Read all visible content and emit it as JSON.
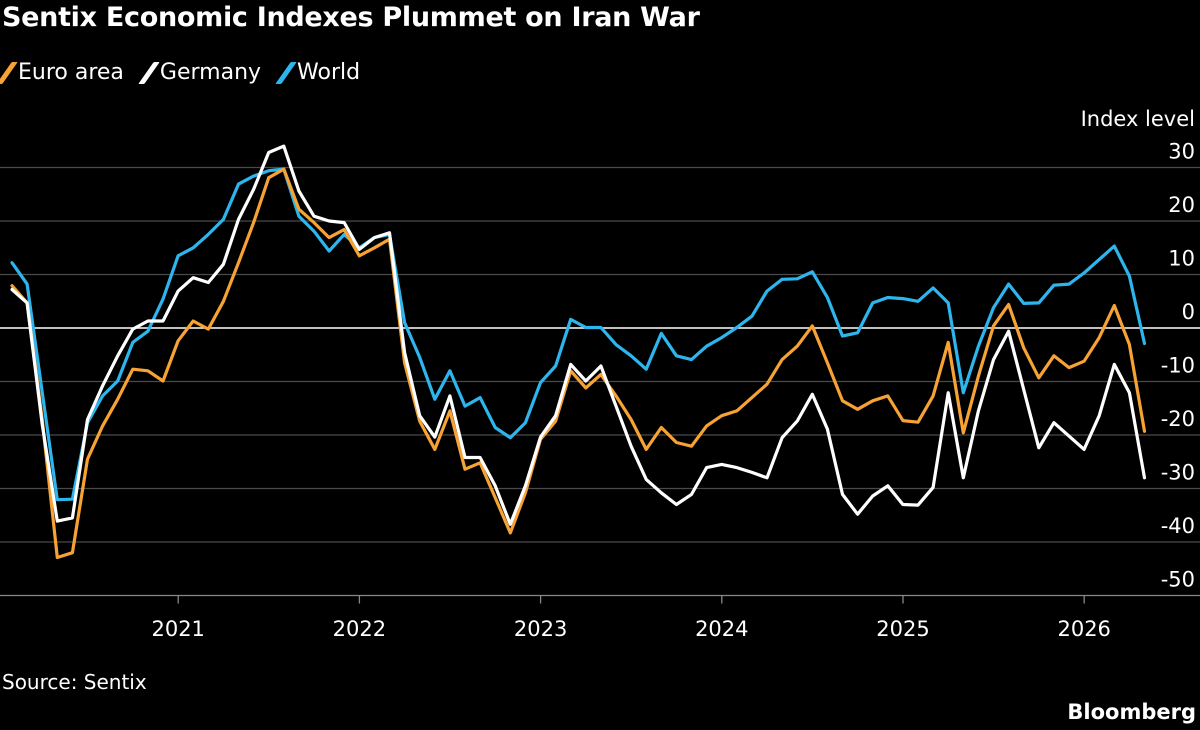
{
  "title": "Sentix Economic Indexes Plummet on Iran War",
  "source": "Source: Sentix",
  "brand": "Bloomberg",
  "chart_data": {
    "type": "line",
    "ylabel": "Index level",
    "ylim": [
      -50,
      30
    ],
    "y_ticks": [
      30,
      20,
      10,
      0,
      -10,
      -20,
      -30,
      -40,
      -50
    ],
    "x_ticks": [
      "2021",
      "2022",
      "2023",
      "2024",
      "2025",
      "2026"
    ],
    "grid": true,
    "legend": "top-left",
    "x": [
      "2020-01",
      "2020-02",
      "2020-03",
      "2020-04",
      "2020-05",
      "2020-06",
      "2020-07",
      "2020-08",
      "2020-09",
      "2020-10",
      "2020-11",
      "2020-12",
      "2021-01",
      "2021-02",
      "2021-03",
      "2021-04",
      "2021-05",
      "2021-06",
      "2021-07",
      "2021-08",
      "2021-09",
      "2021-10",
      "2021-11",
      "2021-12",
      "2022-01",
      "2022-02",
      "2022-03",
      "2022-04",
      "2022-05",
      "2022-06",
      "2022-07",
      "2022-08",
      "2022-09",
      "2022-10",
      "2022-11",
      "2022-12",
      "2023-01",
      "2023-02",
      "2023-03",
      "2023-04",
      "2023-05",
      "2023-06",
      "2023-07",
      "2023-08",
      "2023-09",
      "2023-10",
      "2023-11",
      "2023-12",
      "2024-01",
      "2024-02",
      "2024-03",
      "2024-04",
      "2024-05",
      "2024-06",
      "2024-07",
      "2024-08",
      "2024-09",
      "2024-10",
      "2024-11",
      "2024-12",
      "2025-01",
      "2025-02",
      "2025-03",
      "2025-04",
      "2025-05",
      "2025-06",
      "2025-07",
      "2025-08",
      "2025-09",
      "2025-10",
      "2025-11",
      "2025-12",
      "2026-01",
      "2026-02",
      "2026-03",
      "2026-04"
    ],
    "series": [
      {
        "name": "Euro area",
        "color": "#f7a234",
        "values": [
          7.9,
          4.7,
          -17.1,
          -42.9,
          -42.0,
          -24.5,
          -18.3,
          -13.3,
          -7.7,
          -8.0,
          -9.9,
          -2.4,
          1.3,
          -0.2,
          5.0,
          12.2,
          19.7,
          28.1,
          29.7,
          22.2,
          19.7,
          16.9,
          18.4,
          13.5,
          15.0,
          16.6,
          -6.5,
          -17.4,
          -22.7,
          -15.5,
          -26.4,
          -25.2,
          -31.7,
          -38.3,
          -30.8,
          -20.8,
          -17.4,
          -8.0,
          -11.2,
          -8.7,
          -12.7,
          -17.1,
          -22.7,
          -18.6,
          -21.4,
          -22.1,
          -18.3,
          -16.4,
          -15.5,
          -13.0,
          -10.5,
          -5.9,
          -3.4,
          0.4,
          -6.5,
          -13.6,
          -15.2,
          -13.6,
          -12.7,
          -17.3,
          -17.6,
          -12.7,
          -2.7,
          -19.6,
          -9.0,
          0.4,
          4.4,
          -3.7,
          -9.3,
          -5.2,
          -7.4,
          -6.2,
          -1.8,
          4.2,
          -3.1,
          -19.3
        ]
      },
      {
        "name": "Germany",
        "color": "#ffffff",
        "values": [
          7.2,
          4.7,
          -18.0,
          -36.1,
          -35.5,
          -17.1,
          -10.8,
          -5.2,
          -0.2,
          1.3,
          1.3,
          6.9,
          9.4,
          8.5,
          11.9,
          20.3,
          25.9,
          32.8,
          34.0,
          25.6,
          20.9,
          20.0,
          19.7,
          14.7,
          16.9,
          17.8,
          -4.6,
          -16.4,
          -20.4,
          -12.7,
          -24.2,
          -24.2,
          -29.5,
          -36.7,
          -29.5,
          -20.4,
          -16.4,
          -6.8,
          -9.9,
          -7.1,
          -14.6,
          -22.1,
          -28.3,
          -30.8,
          -33.0,
          -31.1,
          -26.1,
          -25.5,
          -26.1,
          -27.0,
          -28.0,
          -20.5,
          -17.4,
          -12.4,
          -18.9,
          -31.1,
          -34.8,
          -31.4,
          -29.5,
          -33.0,
          -33.1,
          -29.8,
          -12.1,
          -28.0,
          -15.5,
          -5.9,
          -0.6,
          -11.5,
          -22.4,
          -17.7,
          -20.2,
          -22.7,
          -16.4,
          -6.8,
          -12.1,
          -28.0
        ]
      },
      {
        "name": "World",
        "color": "#2db6ee",
        "values": [
          12.2,
          8.2,
          -12.0,
          -32.1,
          -32.0,
          -17.7,
          -12.7,
          -9.9,
          -2.7,
          -0.6,
          5.4,
          13.5,
          15.0,
          17.5,
          20.3,
          26.9,
          28.4,
          29.4,
          29.7,
          20.9,
          18.1,
          14.4,
          17.5,
          15.0,
          16.9,
          17.5,
          1.0,
          -5.5,
          -13.3,
          -8.0,
          -14.6,
          -13.0,
          -18.6,
          -20.5,
          -17.7,
          -10.2,
          -7.1,
          1.6,
          0.1,
          0.1,
          -3.1,
          -5.2,
          -7.7,
          -1.0,
          -5.2,
          -5.9,
          -3.4,
          -1.8,
          0.1,
          2.2,
          6.9,
          9.1,
          9.2,
          10.5,
          5.7,
          -1.5,
          -0.9,
          4.7,
          5.7,
          5.5,
          5.0,
          7.5,
          4.7,
          -12.1,
          -3.4,
          3.8,
          8.2,
          4.6,
          4.7,
          8.0,
          8.2,
          10.3,
          12.8,
          15.3,
          9.7,
          -2.9
        ]
      }
    ]
  }
}
